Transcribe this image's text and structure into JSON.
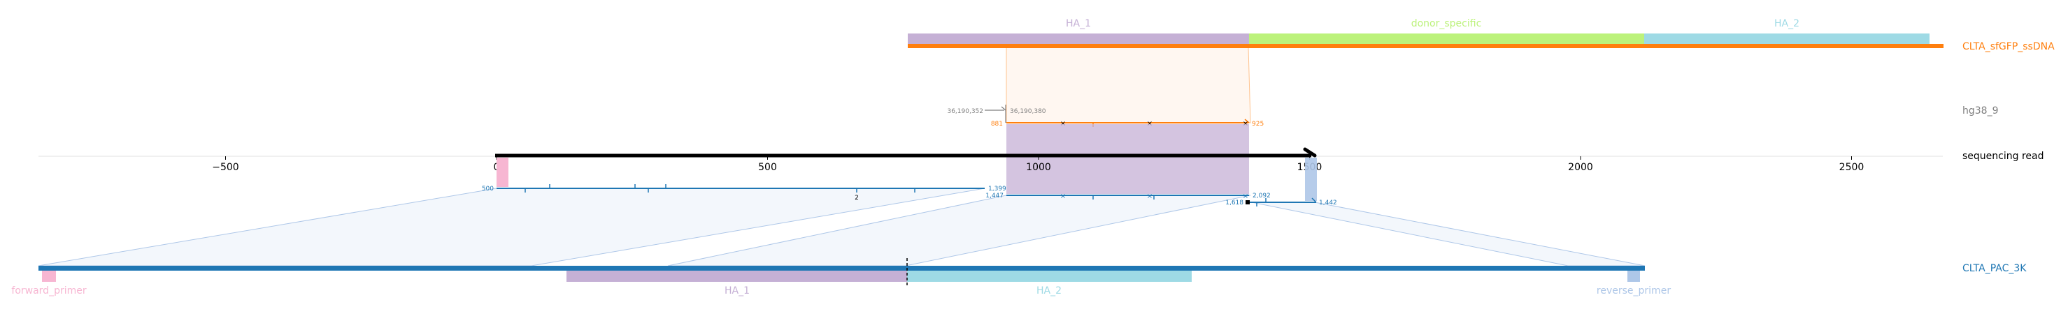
{
  "diagram": {
    "colors": {
      "ha1": "#c5b0d5",
      "ha2": "#9edae5",
      "donor": "#bcf27b",
      "orange": "#ff7f0e",
      "blue": "#1f77b4",
      "pink": "#f7b6d2",
      "lavender": "#aec7e8",
      "black": "#000000",
      "gray": "#7f7f7f"
    },
    "donor": {
      "name": "CLTA_sfGFP_ssDNA",
      "features": [
        {
          "label": "HA_1",
          "start": 760,
          "end": 1390
        },
        {
          "label": "donor_specific",
          "start": 1390,
          "end": 2120
        },
        {
          "label": "HA_2",
          "start": 2120,
          "end": 2645
        }
      ],
      "span": [
        760,
        2670
      ]
    },
    "genome": {
      "name": "hg38_9",
      "coord_left": "36,190,352",
      "coord_right": "36,190,380",
      "left_num": "881",
      "right_num": "925"
    },
    "read": {
      "name": "sequencing read",
      "axis_ticks": [
        "−500",
        "0",
        "500",
        "1000",
        "1500",
        "2000",
        "2500"
      ],
      "axis_values": [
        -500,
        0,
        500,
        1000,
        1500,
        2000,
        2500
      ],
      "length": 1508,
      "alignment_labels": {
        "a1_start": "500",
        "a1_end": "1,399",
        "a1_mid": "2",
        "a2_start": "1,447",
        "a2_end": "2,092",
        "a3_start": "1,618",
        "a3_end": "1,442"
      }
    },
    "target": {
      "name": "CLTA_PAC_3K",
      "features": [
        {
          "label": "forward_primer"
        },
        {
          "label": "HA_1"
        },
        {
          "label": "HA_2"
        },
        {
          "label": "reverse_primer"
        }
      ]
    }
  }
}
